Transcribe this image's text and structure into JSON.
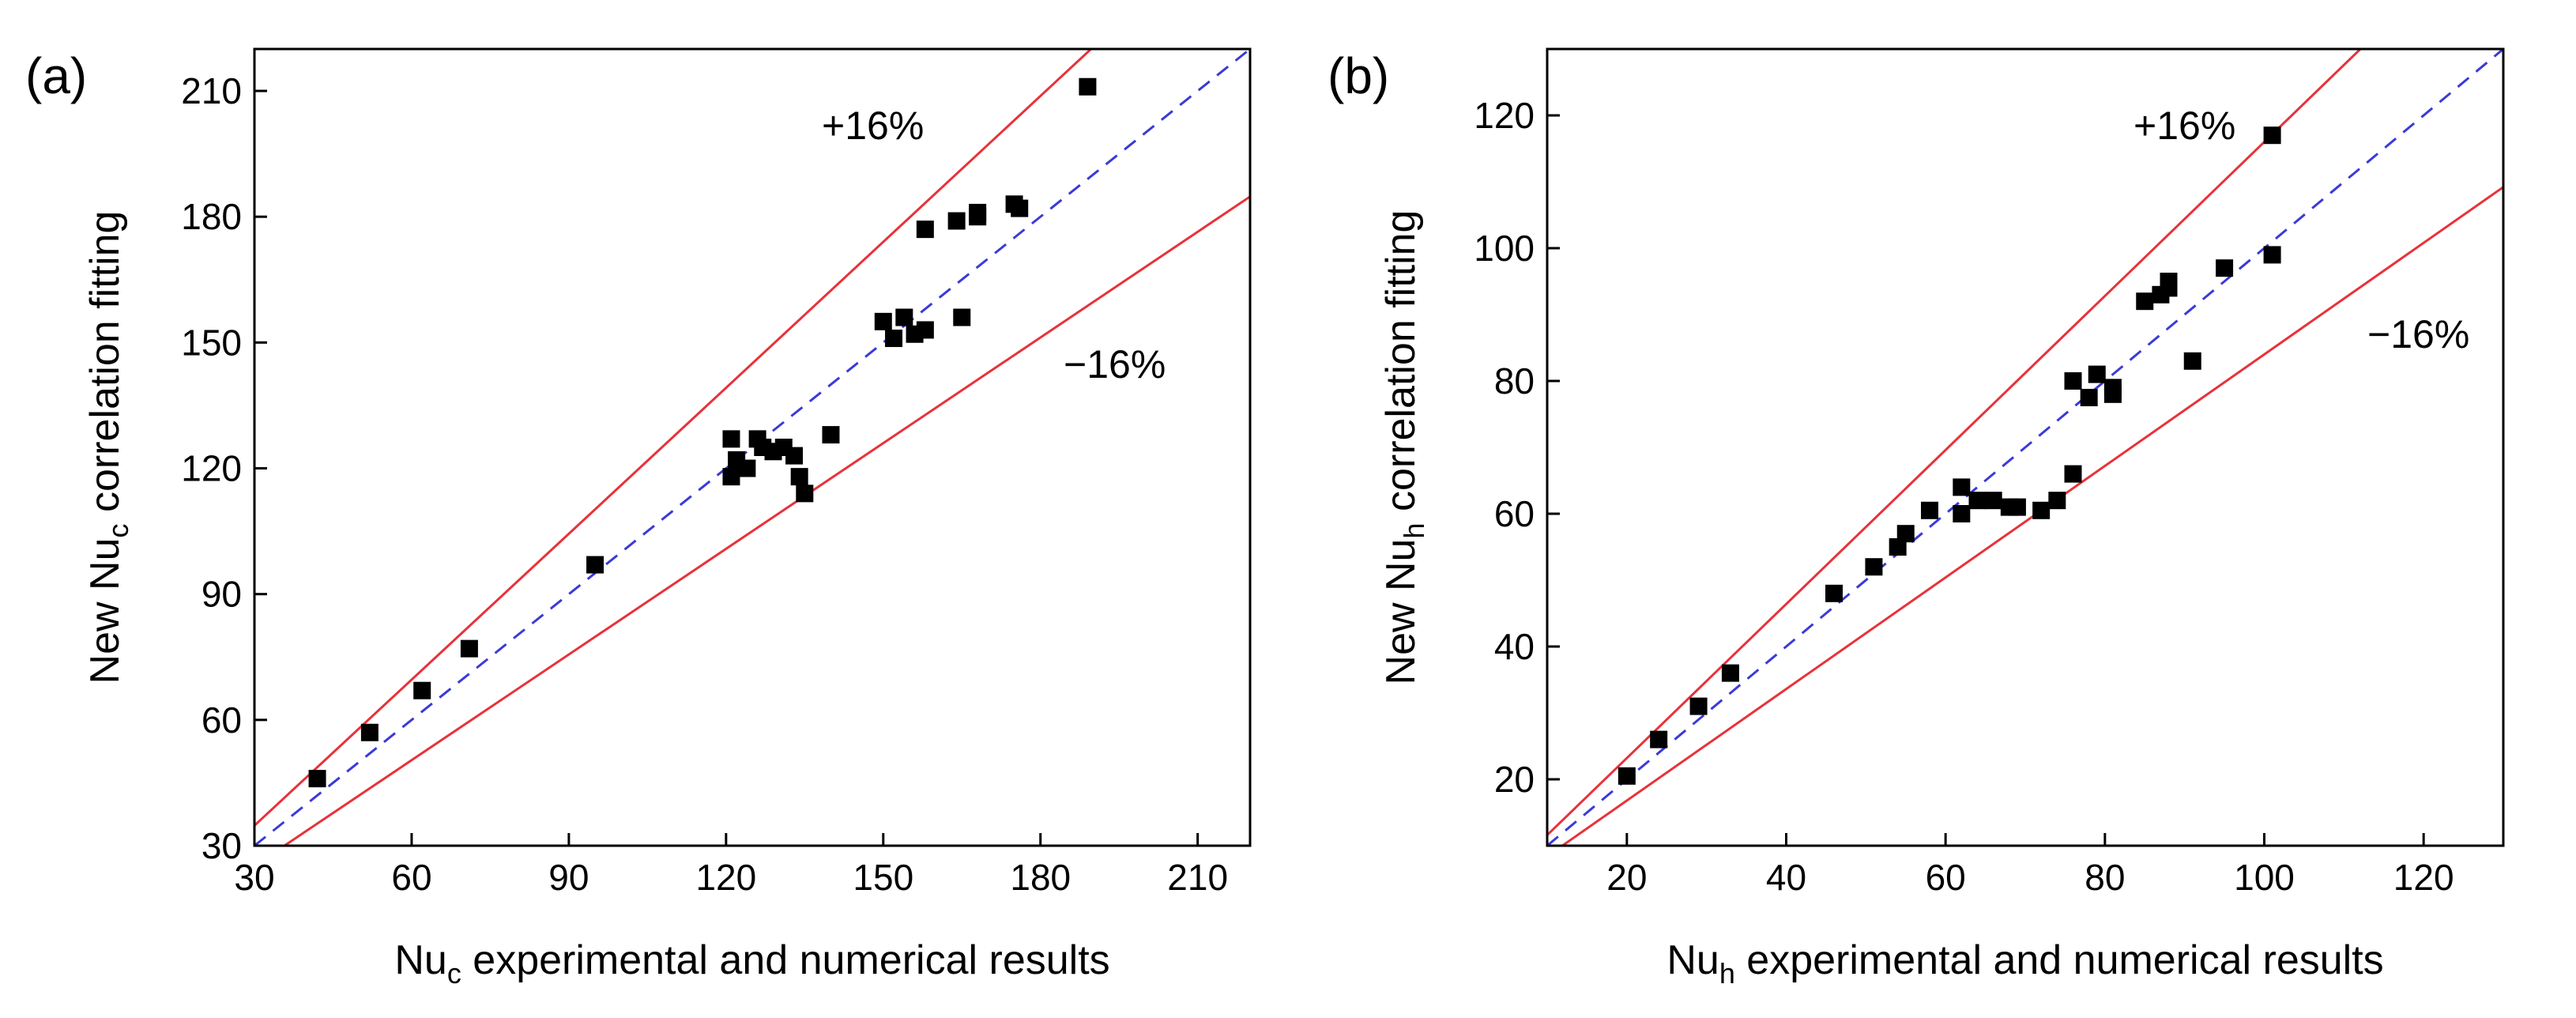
{
  "chart_data": [
    {
      "type": "scatter",
      "panel_label": "(a)",
      "xlabel": {
        "main": "Nu",
        "sub": "c",
        "rest": " experimental and numerical results"
      },
      "ylabel": {
        "main": "New Nu",
        "sub": "c",
        "rest": " correlation fitting"
      },
      "xlim": [
        30,
        220
      ],
      "ylim": [
        30,
        220
      ],
      "xticks": [
        30,
        60,
        90,
        120,
        150,
        180,
        210
      ],
      "yticks": [
        30,
        60,
        90,
        120,
        150,
        180,
        210
      ],
      "upper_label": "+16%",
      "lower_label": "−16%",
      "upper_slope": 1.16,
      "lower_slope": 0.84,
      "colors": {
        "bounds": "#e8323a",
        "parity": "#3a3ad8",
        "points": "#000000"
      },
      "points": [
        [
          42,
          46
        ],
        [
          52,
          57
        ],
        [
          62,
          67
        ],
        [
          71,
          77
        ],
        [
          95,
          97
        ],
        [
          121,
          118
        ],
        [
          121,
          127
        ],
        [
          122,
          122
        ],
        [
          124,
          120
        ],
        [
          126,
          127
        ],
        [
          127,
          125
        ],
        [
          129,
          124
        ],
        [
          131,
          125
        ],
        [
          133,
          123
        ],
        [
          134,
          118
        ],
        [
          135,
          114
        ],
        [
          140,
          128
        ],
        [
          150,
          155
        ],
        [
          152,
          151
        ],
        [
          154,
          156
        ],
        [
          156,
          152
        ],
        [
          158,
          153
        ],
        [
          158,
          177
        ],
        [
          164,
          179
        ],
        [
          165,
          156
        ],
        [
          168,
          181
        ],
        [
          168,
          180
        ],
        [
          175,
          183
        ],
        [
          176,
          182
        ],
        [
          189,
          211
        ]
      ]
    },
    {
      "type": "scatter",
      "panel_label": "(b)",
      "xlabel": {
        "main": "Nu",
        "sub": "h",
        "rest": " experimental and numerical results"
      },
      "ylabel": {
        "main": "New Nu",
        "sub": "h",
        "rest": " correlation fitting"
      },
      "xlim": [
        10,
        130
      ],
      "ylim": [
        10,
        130
      ],
      "xticks": [
        20,
        40,
        60,
        80,
        100,
        120
      ],
      "yticks": [
        20,
        40,
        60,
        80,
        100,
        120
      ],
      "upper_label": "+16%",
      "lower_label": "−16%",
      "upper_slope": 1.16,
      "lower_slope": 0.84,
      "colors": {
        "bounds": "#e8323a",
        "parity": "#3a3ad8",
        "points": "#000000"
      },
      "points": [
        [
          20,
          20.5
        ],
        [
          24,
          26
        ],
        [
          29,
          31
        ],
        [
          33,
          36
        ],
        [
          46,
          48
        ],
        [
          51,
          52
        ],
        [
          54,
          55
        ],
        [
          55,
          57
        ],
        [
          58,
          60.5
        ],
        [
          62,
          64
        ],
        [
          62,
          60
        ],
        [
          64,
          62
        ],
        [
          66,
          62
        ],
        [
          68,
          61
        ],
        [
          69,
          61
        ],
        [
          72,
          60.5
        ],
        [
          74,
          62
        ],
        [
          76,
          66
        ],
        [
          76,
          80
        ],
        [
          78,
          77.5
        ],
        [
          79,
          81
        ],
        [
          81,
          79
        ],
        [
          81,
          78
        ],
        [
          85,
          92
        ],
        [
          87,
          93
        ],
        [
          88,
          94
        ],
        [
          88,
          95
        ],
        [
          91,
          83
        ],
        [
          95,
          97
        ],
        [
          101,
          117
        ],
        [
          101,
          99
        ]
      ]
    }
  ]
}
